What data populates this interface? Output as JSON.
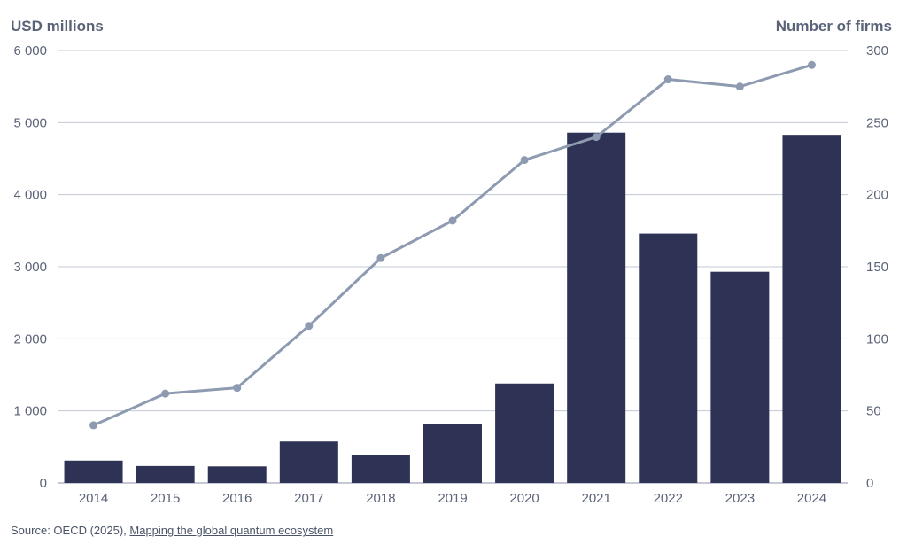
{
  "chart_data": {
    "type": "bar+line",
    "categories": [
      "2014",
      "2015",
      "2016",
      "2017",
      "2018",
      "2019",
      "2020",
      "2021",
      "2022",
      "2023",
      "2024"
    ],
    "left_axis": {
      "title": "USD millions",
      "ylim": [
        0,
        6000
      ],
      "ticks": [
        0,
        1000,
        2000,
        3000,
        4000,
        5000,
        6000
      ],
      "tick_labels": [
        "0",
        "1 000",
        "2 000",
        "3 000",
        "4 000",
        "5 000",
        "6 000"
      ]
    },
    "right_axis": {
      "title": "Number of firms",
      "ylim": [
        0,
        300
      ],
      "ticks": [
        0,
        50,
        100,
        150,
        200,
        250,
        300
      ],
      "tick_labels": [
        "0",
        "50",
        "100",
        "150",
        "200",
        "250",
        "300"
      ]
    },
    "series": [
      {
        "kind": "bar",
        "axis": "left",
        "color": "#2e3255",
        "values": [
          310,
          235,
          230,
          575,
          390,
          820,
          1380,
          4860,
          3460,
          2930,
          4830
        ]
      },
      {
        "kind": "line",
        "axis": "right",
        "color": "#8d9ab0",
        "values": [
          40,
          62,
          66,
          109,
          156,
          182,
          224,
          240,
          280,
          275,
          290
        ]
      }
    ],
    "grid": true
  },
  "source": {
    "prefix": "Source: OECD (2025), ",
    "link_text": "Mapping the global quantum ecosystem"
  }
}
